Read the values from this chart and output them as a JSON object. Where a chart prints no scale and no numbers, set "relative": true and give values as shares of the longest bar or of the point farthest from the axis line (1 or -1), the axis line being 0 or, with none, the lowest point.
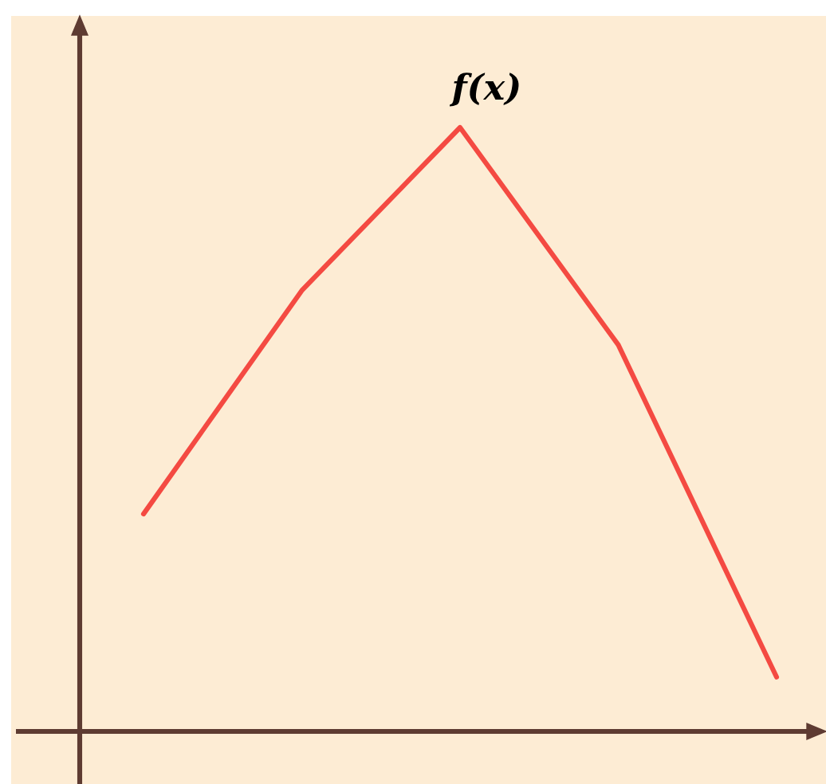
{
  "chart_data": {
    "type": "line",
    "relative": true,
    "categories": [
      null,
      null,
      null,
      null,
      null
    ],
    "series": [
      {
        "name": "f(x)",
        "color": "#f44a42",
        "values": [
          0.36,
          0.73,
          1,
          0.64,
          0.09
        ]
      }
    ]
  }
}
